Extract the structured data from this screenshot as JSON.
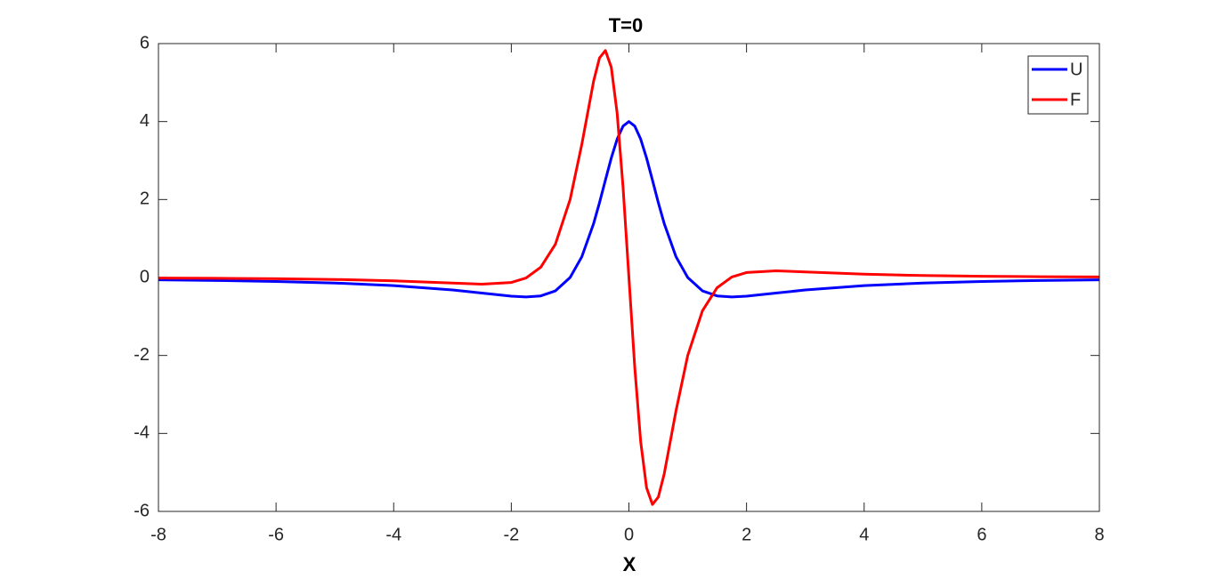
{
  "chart_data": {
    "type": "line",
    "title": "T=0",
    "x_label": "X",
    "x": [
      -8,
      -7,
      -6,
      -5,
      -4,
      -3,
      -2.5,
      -2,
      -1.75,
      -1.5,
      -1.25,
      -1,
      -0.8,
      -0.6,
      -0.5,
      -0.4,
      -0.3,
      -0.2,
      -0.1,
      0,
      0.1,
      0.2,
      0.3,
      0.4,
      0.5,
      0.6,
      0.8,
      1,
      1.25,
      1.5,
      1.75,
      2,
      2.5,
      3,
      4,
      5,
      6,
      7,
      8
    ],
    "series": [
      {
        "name": "U",
        "color": "#0000ff",
        "values": [
          -0.06,
          -0.077,
          -0.102,
          -0.142,
          -0.208,
          -0.32,
          -0.4,
          -0.48,
          -0.5,
          -0.473,
          -0.343,
          0,
          0.535,
          1.384,
          1.92,
          2.497,
          3.064,
          3.55,
          3.882,
          4,
          3.882,
          3.55,
          3.064,
          2.497,
          1.92,
          1.384,
          0.535,
          0,
          -0.343,
          -0.473,
          -0.5,
          -0.48,
          -0.4,
          -0.32,
          -0.208,
          -0.142,
          -0.102,
          -0.077,
          -0.06
        ]
      },
      {
        "name": "F",
        "color": "#ff0000",
        "values": [
          -0.014,
          -0.021,
          -0.031,
          -0.05,
          -0.085,
          -0.144,
          -0.171,
          -0.128,
          -0.013,
          0.262,
          0.854,
          2,
          3.424,
          5.038,
          5.632,
          5.822,
          5.393,
          4.21,
          2.322,
          0,
          -2.322,
          -4.21,
          -5.393,
          -5.822,
          -5.632,
          -5.038,
          -3.424,
          -2,
          -0.854,
          -0.262,
          0.013,
          0.128,
          0.171,
          0.144,
          0.085,
          0.05,
          0.031,
          0.021,
          0.014
        ]
      }
    ],
    "xlim": [
      -8,
      8
    ],
    "xticks": [
      -8,
      -6,
      -4,
      -2,
      0,
      2,
      4,
      6,
      8
    ],
    "ylim": [
      -6,
      6
    ],
    "yticks": [
      -6,
      -4,
      -2,
      0,
      2,
      4,
      6
    ],
    "grid": false,
    "legend": "upper right"
  }
}
